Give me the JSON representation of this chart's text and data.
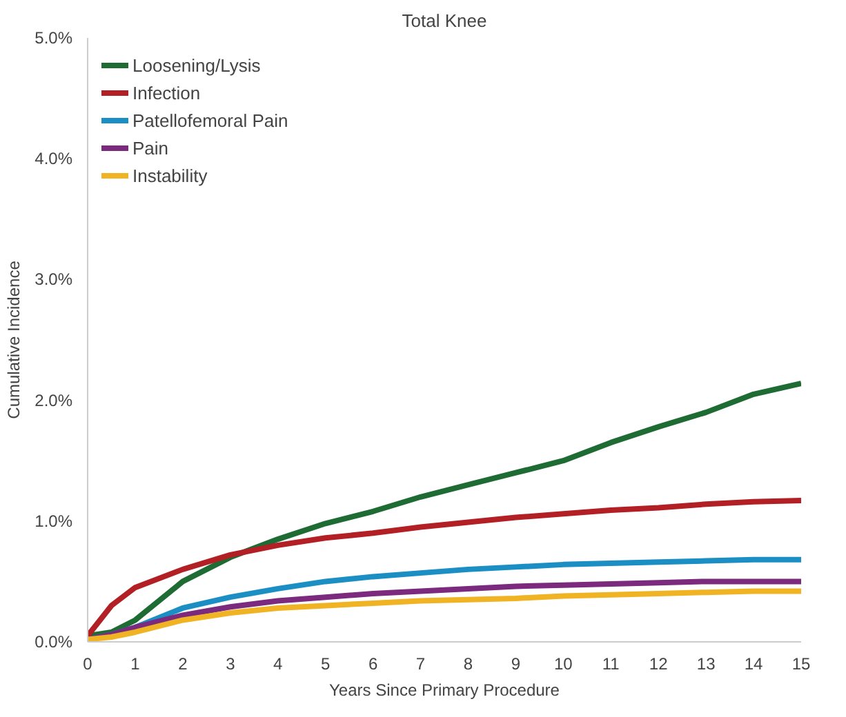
{
  "chart_data": {
    "type": "line",
    "title": "Total Knee",
    "xlabel": "Years Since Primary Procedure",
    "ylabel": "Cumulative Incidence",
    "x": [
      0,
      0.5,
      1,
      2,
      3,
      4,
      5,
      6,
      7,
      8,
      9,
      10,
      11,
      12,
      13,
      14,
      15
    ],
    "series": [
      {
        "name": "Loosening/Lysis",
        "color": "#1e6b34",
        "values": [
          0.05,
          0.08,
          0.18,
          0.5,
          0.7,
          0.85,
          0.98,
          1.08,
          1.2,
          1.3,
          1.4,
          1.5,
          1.65,
          1.78,
          1.9,
          2.05,
          2.14
        ]
      },
      {
        "name": "Infection",
        "color": "#b22025",
        "values": [
          0.05,
          0.3,
          0.45,
          0.6,
          0.72,
          0.8,
          0.86,
          0.9,
          0.95,
          0.99,
          1.03,
          1.06,
          1.09,
          1.11,
          1.14,
          1.16,
          1.17
        ]
      },
      {
        "name": "Patellofemoral Pain",
        "color": "#1b8fc4",
        "values": [
          0.02,
          0.06,
          0.12,
          0.28,
          0.37,
          0.44,
          0.5,
          0.54,
          0.57,
          0.6,
          0.62,
          0.64,
          0.65,
          0.66,
          0.67,
          0.68,
          0.68
        ]
      },
      {
        "name": "Pain",
        "color": "#7b2a7e",
        "values": [
          0.02,
          0.06,
          0.12,
          0.22,
          0.29,
          0.34,
          0.37,
          0.4,
          0.42,
          0.44,
          0.46,
          0.47,
          0.48,
          0.49,
          0.5,
          0.5,
          0.5
        ]
      },
      {
        "name": "Instability",
        "color": "#f0b323",
        "values": [
          0.02,
          0.04,
          0.08,
          0.18,
          0.24,
          0.28,
          0.3,
          0.32,
          0.34,
          0.35,
          0.36,
          0.38,
          0.39,
          0.4,
          0.41,
          0.42,
          0.42
        ]
      }
    ],
    "xlim": [
      0,
      15
    ],
    "ylim": [
      0,
      5
    ],
    "xticks": [
      0,
      1,
      2,
      3,
      4,
      5,
      6,
      7,
      8,
      9,
      10,
      11,
      12,
      13,
      14,
      15
    ],
    "yticks": [
      {
        "value": 0,
        "label": "0.0%"
      },
      {
        "value": 1,
        "label": "1.0%"
      },
      {
        "value": 2,
        "label": "2.0%"
      },
      {
        "value": 3,
        "label": "3.0%"
      },
      {
        "value": 4,
        "label": "4.0%"
      },
      {
        "value": 5,
        "label": "5.0%"
      }
    ],
    "legend": "top left",
    "grid": false
  }
}
